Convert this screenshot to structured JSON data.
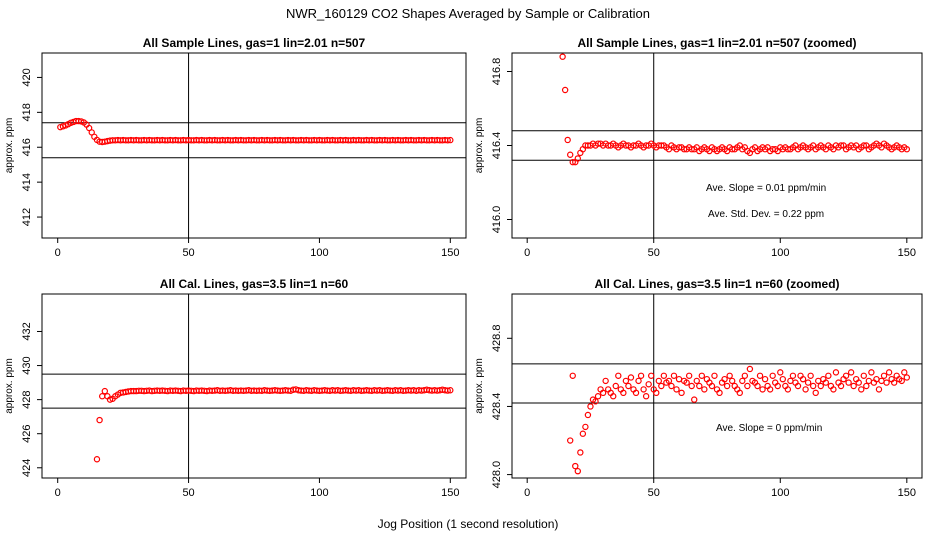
{
  "figure": {
    "title": "NWR_160129  CO2 Shapes Averaged by Sample or Calibration",
    "xlabel": "Jog Position (1 second resolution)"
  },
  "chart_data": [
    {
      "type": "scatter",
      "title": "All Sample Lines, gas=1 lin=2.01 n=507",
      "xlabel": "",
      "ylabel": "approx. ppm",
      "xlim": [
        -6,
        156
      ],
      "ylim": [
        410.8,
        421.4
      ],
      "xticks": [
        0,
        50,
        100,
        150
      ],
      "yticks": [
        412,
        414,
        416,
        418,
        420
      ],
      "vline": 50,
      "hlines": [
        417.4,
        415.4
      ],
      "color": "#ff0000",
      "x": [
        1,
        2,
        3,
        4,
        5,
        6,
        7,
        8,
        9,
        10,
        11,
        12,
        13,
        14,
        15,
        16,
        17,
        18,
        19,
        20,
        21,
        22,
        23,
        24,
        25,
        26,
        27,
        28,
        29,
        30,
        31,
        32,
        33,
        34,
        35,
        36,
        37,
        38,
        39,
        40,
        41,
        42,
        43,
        44,
        45,
        46,
        47,
        48,
        49,
        50,
        51,
        52,
        53,
        54,
        55,
        56,
        57,
        58,
        59,
        60,
        61,
        62,
        63,
        64,
        65,
        66,
        67,
        68,
        69,
        70,
        71,
        72,
        73,
        74,
        75,
        76,
        77,
        78,
        79,
        80,
        81,
        82,
        83,
        84,
        85,
        86,
        87,
        88,
        89,
        90,
        91,
        92,
        93,
        94,
        95,
        96,
        97,
        98,
        99,
        100,
        101,
        102,
        103,
        104,
        105,
        106,
        107,
        108,
        109,
        110,
        111,
        112,
        113,
        114,
        115,
        116,
        117,
        118,
        119,
        120,
        121,
        122,
        123,
        124,
        125,
        126,
        127,
        128,
        129,
        130,
        131,
        132,
        133,
        134,
        135,
        136,
        137,
        138,
        139,
        140,
        141,
        142,
        143,
        144,
        145,
        146,
        147,
        148,
        149,
        150
      ],
      "y": [
        417.15,
        417.2,
        417.25,
        417.32,
        417.4,
        417.45,
        417.5,
        417.5,
        417.48,
        417.42,
        417.3,
        417.1,
        416.85,
        416.6,
        416.42,
        416.32,
        416.3,
        416.32,
        416.35,
        416.38,
        416.4,
        416.4,
        416.41,
        416.4,
        416.41,
        416.4,
        416.4,
        416.41,
        416.4,
        416.41,
        416.4,
        416.4,
        416.41,
        416.4,
        416.41,
        416.4,
        416.4,
        416.41,
        416.4,
        416.41,
        416.4,
        416.4,
        416.41,
        416.4,
        416.41,
        416.4,
        416.4,
        416.41,
        416.4,
        416.41,
        416.4,
        416.4,
        416.41,
        416.4,
        416.41,
        416.4,
        416.4,
        416.41,
        416.4,
        416.41,
        416.4,
        416.4,
        416.41,
        416.4,
        416.41,
        416.4,
        416.4,
        416.41,
        416.4,
        416.41,
        416.4,
        416.4,
        416.41,
        416.4,
        416.41,
        416.4,
        416.4,
        416.41,
        416.4,
        416.41,
        416.4,
        416.4,
        416.41,
        416.4,
        416.41,
        416.4,
        416.4,
        416.41,
        416.4,
        416.41,
        416.4,
        416.4,
        416.41,
        416.4,
        416.41,
        416.4,
        416.4,
        416.41,
        416.4,
        416.41,
        416.4,
        416.4,
        416.41,
        416.4,
        416.41,
        416.4,
        416.4,
        416.41,
        416.4,
        416.41,
        416.4,
        416.4,
        416.41,
        416.4,
        416.41,
        416.4,
        416.4,
        416.41,
        416.4,
        416.41,
        416.4,
        416.4,
        416.41,
        416.4,
        416.41,
        416.4,
        416.4,
        416.41,
        416.4,
        416.41,
        416.4,
        416.4,
        416.41,
        416.4,
        416.41,
        416.4,
        416.4,
        416.41,
        416.4,
        416.41,
        416.4,
        416.4,
        416.41,
        416.4,
        416.41,
        416.4,
        416.4,
        416.41,
        416.4,
        416.41
      ],
      "annotations": []
    },
    {
      "type": "scatter",
      "title": "All Sample Lines, gas=1 lin=2.01 n=507 (zoomed)",
      "xlabel": "",
      "ylabel": "approx. ppm",
      "xlim": [
        -6,
        156
      ],
      "ylim": [
        415.9,
        416.9
      ],
      "xticks": [
        0,
        50,
        100,
        150
      ],
      "yticks": [
        416.0,
        416.4,
        416.8
      ],
      "yticklabels": [
        "416.0",
        "416.4",
        "416.8"
      ],
      "vline": 50,
      "hlines": [
        416.48,
        416.32
      ],
      "color": "#ff0000",
      "x": [
        14,
        15,
        16,
        17,
        18,
        19,
        20,
        21,
        22,
        23,
        24,
        25,
        26,
        27,
        28,
        29,
        30,
        31,
        32,
        33,
        34,
        35,
        36,
        37,
        38,
        39,
        40,
        41,
        42,
        43,
        44,
        45,
        46,
        47,
        48,
        49,
        50,
        51,
        52,
        53,
        54,
        55,
        56,
        57,
        58,
        59,
        60,
        61,
        62,
        63,
        64,
        65,
        66,
        67,
        68,
        69,
        70,
        71,
        72,
        73,
        74,
        75,
        76,
        77,
        78,
        79,
        80,
        81,
        82,
        83,
        84,
        85,
        86,
        87,
        88,
        89,
        90,
        91,
        92,
        93,
        94,
        95,
        96,
        97,
        98,
        99,
        100,
        101,
        102,
        103,
        104,
        105,
        106,
        107,
        108,
        109,
        110,
        111,
        112,
        113,
        114,
        115,
        116,
        117,
        118,
        119,
        120,
        121,
        122,
        123,
        124,
        125,
        126,
        127,
        128,
        129,
        130,
        131,
        132,
        133,
        134,
        135,
        136,
        137,
        138,
        139,
        140,
        141,
        142,
        143,
        144,
        145,
        146,
        147,
        148,
        149,
        150
      ],
      "y": [
        416.88,
        416.7,
        416.43,
        416.35,
        416.31,
        416.31,
        416.33,
        416.36,
        416.38,
        416.4,
        416.4,
        416.4,
        416.41,
        416.4,
        416.41,
        416.41,
        416.4,
        416.41,
        416.4,
        416.4,
        416.41,
        416.4,
        416.39,
        416.4,
        416.41,
        416.4,
        416.4,
        416.39,
        416.4,
        416.4,
        416.41,
        416.4,
        416.39,
        416.4,
        416.4,
        416.41,
        416.4,
        416.39,
        416.4,
        416.4,
        416.4,
        416.39,
        416.38,
        416.4,
        416.39,
        416.38,
        416.39,
        416.39,
        416.38,
        416.38,
        416.39,
        416.38,
        416.38,
        416.39,
        416.37,
        416.38,
        416.39,
        416.38,
        416.37,
        416.39,
        416.38,
        416.37,
        416.38,
        416.39,
        416.38,
        416.37,
        416.39,
        416.38,
        416.38,
        416.39,
        416.4,
        416.38,
        416.39,
        416.37,
        416.36,
        416.38,
        416.39,
        416.37,
        416.38,
        416.39,
        416.38,
        416.39,
        416.37,
        416.38,
        416.38,
        416.37,
        416.39,
        416.38,
        416.39,
        416.38,
        416.38,
        416.39,
        416.4,
        416.38,
        416.39,
        416.4,
        416.39,
        416.38,
        416.39,
        416.4,
        416.38,
        416.39,
        416.4,
        416.39,
        416.38,
        416.4,
        416.39,
        416.38,
        416.4,
        416.39,
        416.4,
        416.4,
        416.38,
        416.39,
        416.4,
        416.39,
        416.4,
        416.38,
        416.39,
        416.4,
        416.4,
        416.38,
        416.39,
        416.4,
        416.41,
        416.4,
        416.39,
        416.41,
        416.4,
        416.39,
        416.38,
        416.39,
        416.4,
        416.39,
        416.38,
        416.39,
        416.38
      ],
      "annotations": [
        "Ave. Slope =  0.01  ppm/min",
        "Ave. Std. Dev. =  0.22  ppm"
      ]
    },
    {
      "type": "scatter",
      "title": "All Cal. Lines, gas=3.5 lin=1 n=60",
      "xlabel": "",
      "ylabel": "approx. ppm",
      "xlim": [
        -6,
        156
      ],
      "ylim": [
        423.4,
        434.2
      ],
      "xticks": [
        0,
        50,
        100,
        150
      ],
      "yticks": [
        424,
        426,
        428,
        430,
        432
      ],
      "vline": 50,
      "hlines": [
        429.5,
        427.5
      ],
      "color": "#ff0000",
      "x": [
        15,
        16,
        17,
        18,
        19,
        20,
        21,
        22,
        23,
        24,
        25,
        26,
        27,
        28,
        29,
        30,
        31,
        32,
        33,
        34,
        35,
        36,
        37,
        38,
        39,
        40,
        41,
        42,
        43,
        44,
        45,
        46,
        47,
        48,
        49,
        50,
        51,
        52,
        53,
        54,
        55,
        56,
        57,
        58,
        59,
        60,
        61,
        62,
        63,
        64,
        65,
        66,
        67,
        68,
        69,
        70,
        71,
        72,
        73,
        74,
        75,
        76,
        77,
        78,
        79,
        80,
        81,
        82,
        83,
        84,
        85,
        86,
        87,
        88,
        89,
        90,
        91,
        92,
        93,
        94,
        95,
        96,
        97,
        98,
        99,
        100,
        101,
        102,
        103,
        104,
        105,
        106,
        107,
        108,
        109,
        110,
        111,
        112,
        113,
        114,
        115,
        116,
        117,
        118,
        119,
        120,
        121,
        122,
        123,
        124,
        125,
        126,
        127,
        128,
        129,
        130,
        131,
        132,
        133,
        134,
        135,
        136,
        137,
        138,
        139,
        140,
        141,
        142,
        143,
        144,
        145,
        146,
        147,
        148,
        149,
        150
      ],
      "y": [
        424.5,
        426.8,
        428.2,
        428.5,
        428.2,
        428.0,
        428.05,
        428.2,
        428.3,
        428.4,
        428.42,
        428.45,
        428.48,
        428.5,
        428.5,
        428.5,
        428.52,
        428.52,
        428.5,
        428.52,
        428.53,
        428.5,
        428.52,
        428.53,
        428.52,
        428.53,
        428.52,
        428.5,
        428.53,
        428.52,
        428.53,
        428.52,
        428.5,
        428.53,
        428.52,
        428.53,
        428.52,
        428.5,
        428.53,
        428.52,
        428.53,
        428.52,
        428.5,
        428.53,
        428.52,
        428.53,
        428.55,
        428.52,
        428.53,
        428.52,
        428.53,
        428.55,
        428.52,
        428.53,
        428.52,
        428.53,
        428.52,
        428.53,
        428.55,
        428.52,
        428.53,
        428.52,
        428.53,
        428.52,
        428.55,
        428.53,
        428.52,
        428.53,
        428.55,
        428.53,
        428.52,
        428.53,
        428.55,
        428.53,
        428.52,
        428.58,
        428.6,
        428.55,
        428.53,
        428.52,
        428.55,
        428.53,
        428.52,
        428.55,
        428.53,
        428.52,
        428.53,
        428.55,
        428.53,
        428.52,
        428.55,
        428.53,
        428.55,
        428.52,
        428.53,
        428.55,
        428.53,
        428.52,
        428.55,
        428.53,
        428.55,
        428.52,
        428.53,
        428.55,
        428.53,
        428.52,
        428.55,
        428.53,
        428.55,
        428.52,
        428.53,
        428.55,
        428.53,
        428.52,
        428.55,
        428.53,
        428.55,
        428.52,
        428.53,
        428.55,
        428.53,
        428.55,
        428.52,
        428.55,
        428.53,
        428.55,
        428.58,
        428.55,
        428.53,
        428.55,
        428.53,
        428.55,
        428.58,
        428.55,
        428.53,
        428.55
      ],
      "annotations": []
    },
    {
      "type": "scatter",
      "title": "All Cal. Lines, gas=3.5 lin=1 n=60 (zoomed)",
      "xlabel": "",
      "ylabel": "approx. ppm",
      "xlim": [
        -6,
        156
      ],
      "ylim": [
        427.98,
        429.06
      ],
      "xticks": [
        0,
        50,
        100,
        150
      ],
      "yticks": [
        428.0,
        428.4,
        428.8
      ],
      "yticklabels": [
        "428.0",
        "428.4",
        "428.8"
      ],
      "vline": 50,
      "hlines": [
        428.65,
        428.42
      ],
      "color": "#ff0000",
      "x": [
        17,
        18,
        19,
        20,
        21,
        22,
        23,
        24,
        25,
        26,
        27,
        28,
        29,
        30,
        31,
        32,
        33,
        34,
        35,
        36,
        37,
        38,
        39,
        40,
        41,
        42,
        43,
        44,
        45,
        46,
        47,
        48,
        49,
        50,
        51,
        52,
        53,
        54,
        55,
        56,
        57,
        58,
        59,
        60,
        61,
        62,
        63,
        64,
        65,
        66,
        67,
        68,
        69,
        70,
        71,
        72,
        73,
        74,
        75,
        76,
        77,
        78,
        79,
        80,
        81,
        82,
        83,
        84,
        85,
        86,
        87,
        88,
        89,
        90,
        91,
        92,
        93,
        94,
        95,
        96,
        97,
        98,
        99,
        100,
        101,
        102,
        103,
        104,
        105,
        106,
        107,
        108,
        109,
        110,
        111,
        112,
        113,
        114,
        115,
        116,
        117,
        118,
        119,
        120,
        121,
        122,
        123,
        124,
        125,
        126,
        127,
        128,
        129,
        130,
        131,
        132,
        133,
        134,
        135,
        136,
        137,
        138,
        139,
        140,
        141,
        142,
        143,
        144,
        145,
        146,
        147,
        148,
        149,
        150
      ],
      "y": [
        428.2,
        428.58,
        428.05,
        428.02,
        428.13,
        428.24,
        428.28,
        428.35,
        428.4,
        428.44,
        428.43,
        428.46,
        428.5,
        428.48,
        428.55,
        428.5,
        428.48,
        428.46,
        428.52,
        428.58,
        428.5,
        428.48,
        428.55,
        428.52,
        428.57,
        428.5,
        428.48,
        428.55,
        428.58,
        428.5,
        428.46,
        428.53,
        428.58,
        428.5,
        428.48,
        428.55,
        428.52,
        428.58,
        428.54,
        428.55,
        428.52,
        428.58,
        428.5,
        428.56,
        428.48,
        428.55,
        428.54,
        428.58,
        428.52,
        428.44,
        428.55,
        428.52,
        428.58,
        428.5,
        428.56,
        428.54,
        428.52,
        428.58,
        428.5,
        428.48,
        428.54,
        428.56,
        428.52,
        428.58,
        428.55,
        428.52,
        428.5,
        428.48,
        428.55,
        428.58,
        428.52,
        428.62,
        428.55,
        428.54,
        428.52,
        428.58,
        428.5,
        428.56,
        428.52,
        428.5,
        428.58,
        428.54,
        428.52,
        428.6,
        428.56,
        428.52,
        428.5,
        428.55,
        428.58,
        428.54,
        428.52,
        428.58,
        428.56,
        428.5,
        428.54,
        428.58,
        428.52,
        428.48,
        428.55,
        428.52,
        428.56,
        428.54,
        428.58,
        428.52,
        428.5,
        428.6,
        428.54,
        428.52,
        428.56,
        428.58,
        428.54,
        428.6,
        428.52,
        428.56,
        428.54,
        428.5,
        428.58,
        428.52,
        428.55,
        428.6,
        428.54,
        428.56,
        428.5,
        428.55,
        428.58,
        428.54,
        428.6,
        428.56,
        428.54,
        428.58,
        428.56,
        428.55,
        428.6,
        428.57
      ],
      "annotations": [
        "Ave. Slope =  0  ppm/min"
      ]
    }
  ]
}
